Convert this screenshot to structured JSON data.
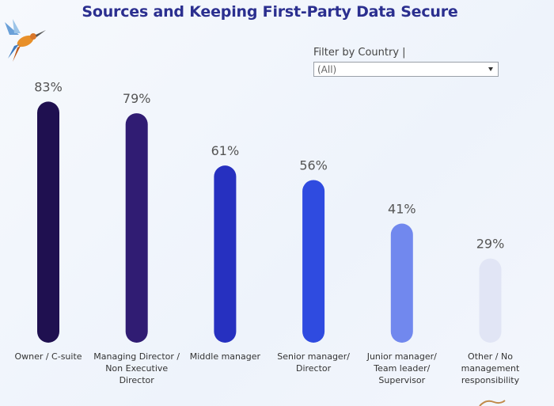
{
  "title": "Sources and Keeping First-Party Data Secure",
  "filter": {
    "label": "Filter by Country |",
    "value": "(All)"
  },
  "chart_data": {
    "type": "bar",
    "title": "Sources and Keeping First-Party Data Secure",
    "categories": [
      "Owner / C-suite",
      "Managing Director / Non Executive Director",
      "Middle manager",
      "Senior manager/ Director",
      "Junior manager/ Team leader/ Supervisor",
      "Other / No management responsibility"
    ],
    "values": [
      83,
      79,
      61,
      56,
      41,
      29
    ],
    "data_labels": [
      "83%",
      "79%",
      "61%",
      "56%",
      "41%",
      "29%"
    ],
    "colors": [
      "#1f1050",
      "#301c73",
      "#2630c0",
      "#2f4be0",
      "#7188ee",
      "#e1e5f5"
    ],
    "ylim": [
      0,
      100
    ],
    "grid": false,
    "legend": false
  }
}
